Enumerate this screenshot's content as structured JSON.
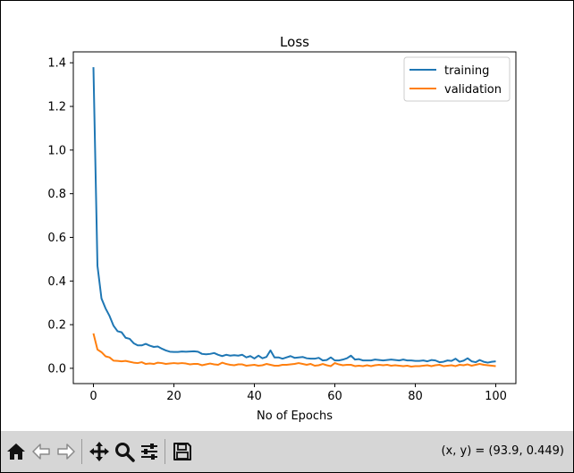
{
  "toolbar": {
    "buttons": [
      {
        "name": "home",
        "icon": "home-icon"
      },
      {
        "name": "back",
        "icon": "back-arrow-icon"
      },
      {
        "name": "forward",
        "icon": "forward-arrow-icon"
      },
      {
        "name": "pan",
        "icon": "move-icon"
      },
      {
        "name": "zoom",
        "icon": "magnifier-icon"
      },
      {
        "name": "configure",
        "icon": "sliders-icon"
      },
      {
        "name": "save",
        "icon": "floppy-disk-icon"
      }
    ],
    "coordinates": "(x, y) = (93.9, 0.449)"
  },
  "chart_data": {
    "type": "line",
    "title": "Loss",
    "xlabel": "No of Epochs",
    "ylabel": "",
    "xlim": [
      -5,
      105
    ],
    "ylim": [
      -0.07,
      1.45
    ],
    "xticks": [
      0,
      20,
      40,
      60,
      80,
      100
    ],
    "xtick_labels": [
      "0",
      "20",
      "40",
      "60",
      "80",
      "100"
    ],
    "yticks": [
      0.0,
      0.2,
      0.4,
      0.6,
      0.8,
      1.0,
      1.2,
      1.4
    ],
    "ytick_labels": [
      "0.0",
      "0.2",
      "0.4",
      "0.6",
      "0.8",
      "1.0",
      "1.2",
      "1.4"
    ],
    "legend": {
      "position": "top-right",
      "entries": [
        "training",
        "validation"
      ]
    },
    "series": [
      {
        "name": "training",
        "color": "#1f77b4",
        "x": [
          0,
          1,
          2,
          3,
          4,
          5,
          6,
          7,
          8,
          9,
          10,
          11,
          12,
          13,
          14,
          15,
          16,
          17,
          18,
          19,
          20,
          21,
          22,
          23,
          24,
          25,
          26,
          27,
          28,
          29,
          30,
          31,
          32,
          33,
          34,
          35,
          36,
          37,
          38,
          39,
          40,
          41,
          42,
          43,
          44,
          45,
          46,
          47,
          48,
          49,
          50,
          51,
          52,
          53,
          54,
          55,
          56,
          57,
          58,
          59,
          60,
          61,
          62,
          63,
          64,
          65,
          66,
          67,
          68,
          69,
          70,
          71,
          72,
          73,
          74,
          75,
          76,
          77,
          78,
          79,
          80,
          81,
          82,
          83,
          84,
          85,
          86,
          87,
          88,
          89,
          90,
          91,
          92,
          93,
          94,
          95,
          96,
          97,
          98,
          99,
          100
        ],
        "values": [
          1.38,
          0.47,
          0.32,
          0.275,
          0.24,
          0.195,
          0.17,
          0.165,
          0.14,
          0.135,
          0.115,
          0.105,
          0.105,
          0.112,
          0.104,
          0.098,
          0.1,
          0.09,
          0.082,
          0.076,
          0.075,
          0.075,
          0.077,
          0.076,
          0.077,
          0.078,
          0.076,
          0.066,
          0.064,
          0.066,
          0.07,
          0.062,
          0.056,
          0.062,
          0.058,
          0.06,
          0.058,
          0.062,
          0.05,
          0.056,
          0.045,
          0.058,
          0.046,
          0.052,
          0.082,
          0.05,
          0.05,
          0.044,
          0.05,
          0.056,
          0.048,
          0.05,
          0.052,
          0.046,
          0.044,
          0.044,
          0.048,
          0.036,
          0.038,
          0.05,
          0.036,
          0.036,
          0.04,
          0.046,
          0.058,
          0.04,
          0.042,
          0.036,
          0.036,
          0.036,
          0.04,
          0.038,
          0.036,
          0.038,
          0.04,
          0.038,
          0.036,
          0.04,
          0.036,
          0.036,
          0.034,
          0.034,
          0.036,
          0.032,
          0.038,
          0.036,
          0.028,
          0.03,
          0.036,
          0.034,
          0.044,
          0.03,
          0.035,
          0.046,
          0.032,
          0.028,
          0.038,
          0.03,
          0.026,
          0.03,
          0.032
        ]
      },
      {
        "name": "validation",
        "color": "#ff7f0e",
        "x": [
          0,
          1,
          2,
          3,
          4,
          5,
          6,
          7,
          8,
          9,
          10,
          11,
          12,
          13,
          14,
          15,
          16,
          17,
          18,
          19,
          20,
          21,
          22,
          23,
          24,
          25,
          26,
          27,
          28,
          29,
          30,
          31,
          32,
          33,
          34,
          35,
          36,
          37,
          38,
          39,
          40,
          41,
          42,
          43,
          44,
          45,
          46,
          47,
          48,
          49,
          50,
          51,
          52,
          53,
          54,
          55,
          56,
          57,
          58,
          59,
          60,
          61,
          62,
          63,
          64,
          65,
          66,
          67,
          68,
          69,
          70,
          71,
          72,
          73,
          74,
          75,
          76,
          77,
          78,
          79,
          80,
          81,
          82,
          83,
          84,
          85,
          86,
          87,
          88,
          89,
          90,
          91,
          92,
          93,
          94,
          95,
          96,
          97,
          98,
          99,
          100
        ],
        "values": [
          0.16,
          0.086,
          0.074,
          0.055,
          0.05,
          0.035,
          0.034,
          0.032,
          0.034,
          0.03,
          0.026,
          0.024,
          0.028,
          0.02,
          0.022,
          0.02,
          0.026,
          0.024,
          0.02,
          0.022,
          0.024,
          0.022,
          0.024,
          0.022,
          0.018,
          0.02,
          0.02,
          0.014,
          0.018,
          0.022,
          0.018,
          0.016,
          0.026,
          0.02,
          0.016,
          0.014,
          0.018,
          0.018,
          0.012,
          0.014,
          0.016,
          0.012,
          0.014,
          0.02,
          0.016,
          0.012,
          0.012,
          0.016,
          0.016,
          0.018,
          0.02,
          0.024,
          0.02,
          0.016,
          0.02,
          0.012,
          0.014,
          0.02,
          0.014,
          0.01,
          0.024,
          0.018,
          0.014,
          0.016,
          0.016,
          0.01,
          0.012,
          0.01,
          0.014,
          0.01,
          0.014,
          0.016,
          0.014,
          0.016,
          0.012,
          0.014,
          0.012,
          0.01,
          0.012,
          0.008,
          0.01,
          0.01,
          0.012,
          0.014,
          0.01,
          0.014,
          0.016,
          0.01,
          0.012,
          0.014,
          0.01,
          0.016,
          0.014,
          0.018,
          0.012,
          0.016,
          0.02,
          0.016,
          0.014,
          0.012,
          0.01
        ]
      }
    ]
  }
}
